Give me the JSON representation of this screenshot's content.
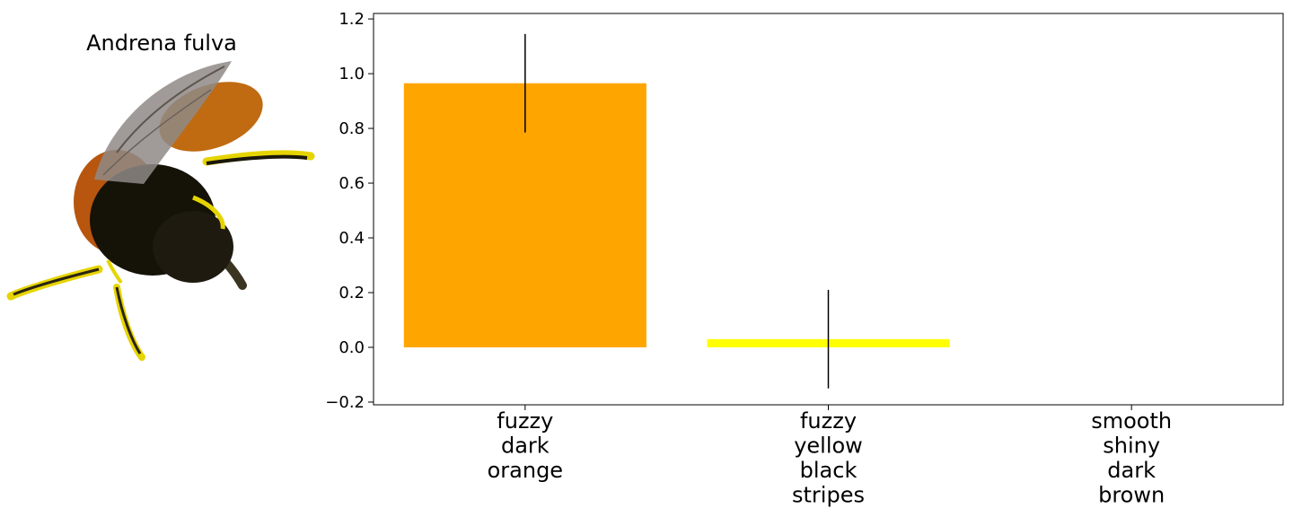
{
  "specimen": {
    "title": "Andrena fulva",
    "icon": "bee-illustration",
    "colors": {
      "wing": "#8f8a86",
      "thorax": "#b8560f",
      "abdomen": "#151208",
      "legs": "#e6d400"
    }
  },
  "chart_data": {
    "type": "bar",
    "categories": [
      [
        "fuzzy",
        "dark",
        "orange"
      ],
      [
        "fuzzy",
        "yellow",
        "black",
        "stripes"
      ],
      [
        "smooth",
        "shiny",
        "dark",
        "brown"
      ]
    ],
    "values": [
      0.965,
      0.03,
      0.0
    ],
    "errors": [
      0.18,
      0.18,
      0.0
    ],
    "colors": [
      "#ffa500",
      "#ffff00",
      "#ffffff"
    ],
    "ylim": [
      -0.21,
      1.22
    ],
    "yticks": [
      -0.2,
      0.0,
      0.2,
      0.4,
      0.6,
      0.8,
      1.0,
      1.2
    ],
    "ytick_labels": [
      "−0.2",
      "0.0",
      "0.2",
      "0.4",
      "0.6",
      "0.8",
      "1.0",
      "1.2"
    ],
    "title": "",
    "xlabel": "",
    "ylabel": "",
    "grid": false,
    "legend": "none"
  }
}
